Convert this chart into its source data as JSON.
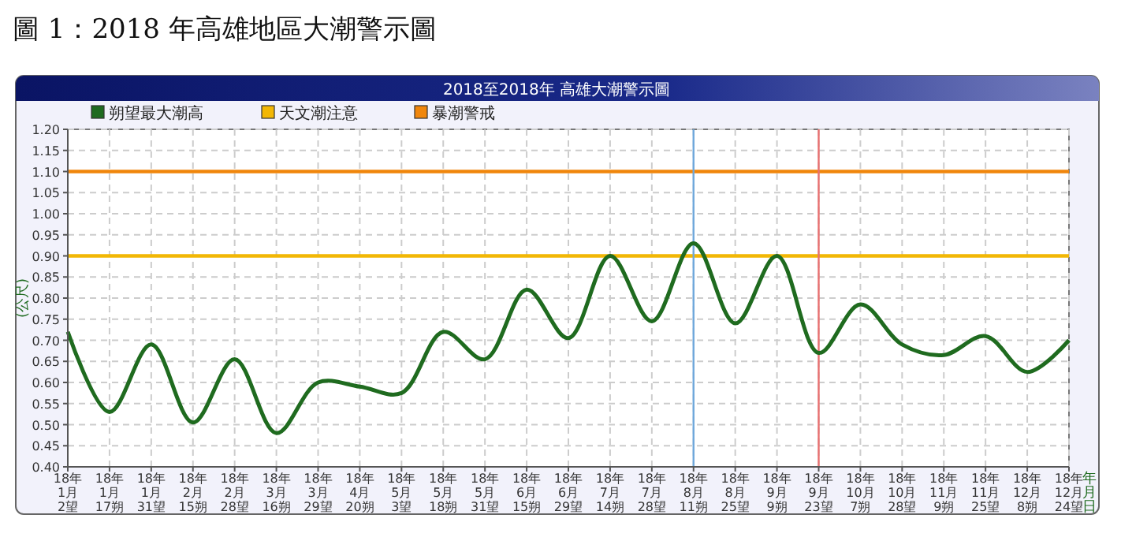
{
  "chart_data": {
    "type": "line",
    "title": "圖 1：2018 年高雄地區大潮警示圖",
    "subtitle": "2018至2018年 高雄大潮警示圖",
    "ylabel": "(公尺)",
    "xlabel": "年月日",
    "categories": [
      "18年\n1月\n2望",
      "18年\n1月\n17朔",
      "18年\n1月\n31望",
      "18年\n2月\n15朔",
      "18年\n2月\n28望",
      "18年\n3月\n16朔",
      "18年\n3月\n29望",
      "18年\n4月\n20朔",
      "18年\n5月\n3望",
      "18年\n5月\n18朔",
      "18年\n5月\n31望",
      "18年\n6月\n15朔",
      "18年\n6月\n29望",
      "18年\n7月\n14朔",
      "18年\n7月\n28望",
      "18年\n8月\n11朔",
      "18年\n8月\n25望",
      "18年\n9月\n9朔",
      "18年\n9月\n23望",
      "18年\n10月\n7朔",
      "18年\n10月\n28望",
      "18年\n11月\n9朔",
      "18年\n11月\n25望",
      "18年\n12月\n8朔",
      "18年\n12月\n24望"
    ],
    "series": [
      {
        "name": "朔望最大潮高",
        "color": "#1f6b1f",
        "values": [
          0.72,
          0.53,
          0.69,
          0.505,
          0.655,
          0.48,
          0.6,
          0.59,
          0.575,
          0.72,
          0.655,
          0.82,
          0.705,
          0.9,
          0.745,
          0.93,
          0.74,
          0.9,
          0.67,
          0.785,
          0.69,
          0.665,
          0.71,
          0.625,
          0.7
        ]
      }
    ],
    "ref_lines": [
      {
        "axis": "y",
        "value": 0.9,
        "label": "天文潮注意",
        "color": "#f2b705"
      },
      {
        "axis": "y",
        "value": 1.1,
        "label": "暴潮警戒",
        "color": "#f0860c"
      },
      {
        "axis": "x",
        "value": "18年\n8月\n11朔",
        "color": "#6fa8dc"
      },
      {
        "axis": "x",
        "value": "18年\n9月\n23望",
        "color": "#e87070"
      }
    ],
    "ylim": [
      0.4,
      1.2
    ],
    "yticks": [
      {
        "value": 0.4,
        "label": "0.40"
      },
      {
        "value": 0.45,
        "label": "0.45"
      },
      {
        "value": 0.5,
        "label": "0.50"
      },
      {
        "value": 0.55,
        "label": "0.55"
      },
      {
        "value": 0.6,
        "label": "0.60"
      },
      {
        "value": 0.65,
        "label": "0.65"
      },
      {
        "value": 0.7,
        "label": "0.70"
      },
      {
        "value": 0.75,
        "label": "0.75"
      },
      {
        "value": 0.8,
        "label": "0.80"
      },
      {
        "value": 0.85,
        "label": "0.85"
      },
      {
        "value": 0.9,
        "label": "0.90"
      },
      {
        "value": 0.95,
        "label": "0.95"
      },
      {
        "value": 1.0,
        "label": "1.00"
      },
      {
        "value": 1.05,
        "label": "1.05"
      },
      {
        "value": 1.1,
        "label": "1.10"
      },
      {
        "value": 1.15,
        "label": "1.15"
      },
      {
        "value": 1.2,
        "label": "1.20"
      }
    ],
    "grid": true,
    "legend": "top left",
    "marker": "none",
    "line_style": "solid"
  }
}
